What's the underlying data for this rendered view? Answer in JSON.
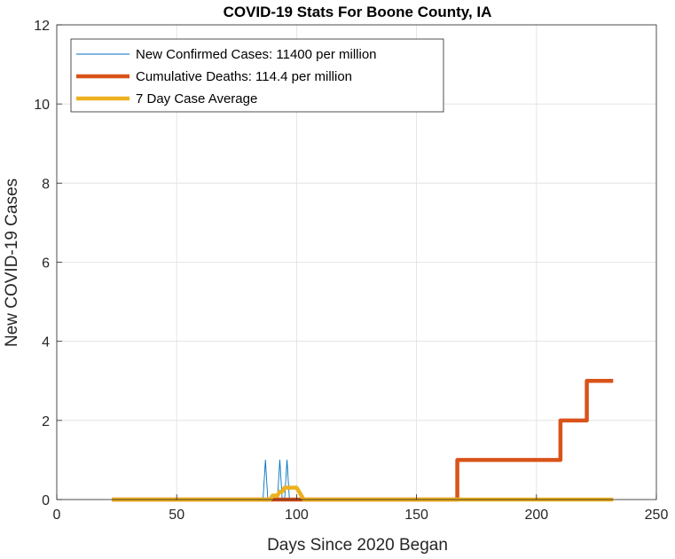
{
  "chart_data": {
    "type": "line",
    "title": "COVID-19 Stats For Boone County, IA",
    "xlabel": "Days Since 2020 Began",
    "ylabel": "New COVID-19 Cases",
    "xlim": [
      0,
      250
    ],
    "ylim": [
      0,
      12
    ],
    "xticks": [
      0,
      50,
      100,
      150,
      200,
      250
    ],
    "yticks": [
      0,
      2,
      4,
      6,
      8,
      10,
      12
    ],
    "grid": true,
    "legend_position": "top-left",
    "series": [
      {
        "name": "New Confirmed Cases: 11400 per million",
        "color": "#0072BD",
        "width": 0.9,
        "x": [
          23,
          86,
          87,
          88,
          89,
          90,
          91,
          92,
          93,
          94,
          95,
          96,
          97,
          98,
          99,
          100,
          101,
          102,
          103,
          104,
          105,
          106,
          107,
          108,
          109,
          110,
          111,
          112,
          113,
          114,
          115,
          116,
          117,
          118,
          119,
          120,
          121,
          122,
          123,
          124,
          125,
          126,
          127,
          128,
          129,
          130,
          131,
          132,
          133,
          134,
          135,
          136,
          137,
          138,
          139,
          140,
          141,
          142,
          143,
          144,
          145,
          146,
          147,
          148,
          149,
          150,
          151,
          152,
          153,
          154,
          155,
          156,
          157,
          158,
          159,
          160,
          161,
          162,
          163,
          164,
          165,
          166,
          167,
          168,
          169,
          170,
          171,
          172,
          173,
          174,
          175,
          176,
          177,
          178,
          179,
          180,
          181,
          182,
          183,
          184,
          185,
          186,
          187,
          188,
          189,
          190,
          191,
          192,
          193,
          194,
          195,
          196,
          197,
          198,
          199,
          200,
          201,
          202,
          203,
          204,
          205,
          206,
          207,
          208,
          209,
          210,
          211,
          212,
          213,
          214,
          215,
          216,
          217,
          218,
          219,
          220,
          221,
          222,
          223,
          224,
          225,
          226,
          227,
          228,
          229,
          230,
          231,
          232
        ],
        "y": [
          0,
          0,
          1,
          0,
          0,
          0,
          0,
          0,
          1,
          0,
          0,
          1,
          0,
          0,
          0,
          0,
          0,
          0,
          0,
          0,
          0,
          0,
          0,
          0,
          0,
          0,
          0,
          0,
          0,
          0,
          0,
          0,
          0,
          0,
          0,
          0,
          0,
          0,
          0,
          0,
          0,
          0,
          0,
          0,
          0,
          0,
          0,
          0,
          0,
          0,
          0,
          0,
          0,
          0,
          0,
          0,
          0,
          0,
          0,
          0,
          0,
          0,
          0,
          0,
          0,
          0,
          0,
          0,
          0,
          0,
          0,
          0,
          0,
          0,
          0,
          0,
          0,
          0,
          0,
          0,
          0,
          0,
          0,
          0,
          0,
          0,
          0,
          0,
          0,
          0,
          0,
          0,
          0,
          0,
          0,
          0,
          0,
          0,
          0,
          0,
          0,
          0,
          0,
          0,
          0,
          0,
          0,
          0,
          0,
          0,
          0,
          0,
          0,
          0,
          0,
          0,
          0,
          0,
          0,
          0,
          0,
          0,
          0,
          0,
          0,
          0,
          0,
          0,
          0,
          0,
          0,
          0,
          0,
          0,
          0,
          0,
          0,
          0,
          0,
          0,
          0,
          0,
          0,
          0,
          0,
          0,
          0,
          0
        ]
      },
      {
        "name": "Cumulative Deaths: 114.4 per million",
        "color": "#D95319",
        "width": 4.5,
        "x": [
          23,
          167,
          167,
          210,
          210,
          221,
          221,
          232
        ],
        "y": [
          0,
          0,
          1,
          1,
          2,
          2,
          3,
          3
        ]
      },
      {
        "name": "7 Day Case Average",
        "color": "#EDB120",
        "width": 4.5,
        "x": [
          23,
          86,
          88,
          89,
          90,
          91,
          92,
          93,
          94,
          95,
          96,
          97,
          98,
          99,
          100,
          101,
          102,
          103,
          104,
          105,
          106,
          107,
          108,
          109,
          110,
          111,
          112,
          113,
          114,
          115,
          116,
          117,
          118,
          119,
          120,
          121,
          122,
          123,
          124,
          125,
          126,
          127,
          128,
          129,
          130,
          131,
          132,
          133,
          134,
          135,
          136,
          137,
          138,
          139,
          140,
          141,
          142,
          143,
          144,
          145,
          146,
          147,
          148,
          149,
          150,
          151,
          152,
          153,
          154,
          155,
          156,
          157,
          158,
          159,
          160,
          161,
          162,
          163,
          164,
          165,
          166,
          167,
          168,
          169,
          170,
          171,
          172,
          173,
          174,
          175,
          176,
          177,
          178,
          179,
          180,
          181,
          182,
          183,
          184,
          185,
          186,
          187,
          188,
          189,
          190,
          191,
          192,
          193,
          194,
          195,
          196,
          197,
          198,
          199,
          200,
          201,
          202,
          203,
          204,
          205,
          206,
          207,
          208,
          209,
          210,
          211,
          212,
          213,
          214,
          215,
          216,
          217,
          218,
          219,
          220,
          221,
          222,
          223,
          224,
          225,
          226,
          227,
          228,
          229,
          230,
          231,
          232
        ],
        "y": [
          0,
          0,
          0,
          0,
          0.1,
          0.1,
          0.1,
          0.2,
          0.2,
          0.3,
          0.3,
          0.3,
          0.3,
          0.3,
          0.3,
          0.2,
          0.1,
          0,
          0,
          0,
          0,
          0,
          0,
          0,
          0,
          0,
          0,
          0,
          0,
          0,
          0,
          0,
          0,
          0,
          0,
          0,
          0,
          0,
          0,
          0,
          0,
          0,
          0,
          0,
          0,
          0,
          0,
          0,
          0,
          0,
          0,
          0,
          0,
          0,
          0,
          0,
          0,
          0,
          0,
          0,
          0,
          0,
          0,
          0,
          0,
          0,
          0,
          0,
          0,
          0,
          0,
          0,
          0,
          0,
          0,
          0,
          0,
          0,
          0,
          0,
          0,
          0,
          0,
          0,
          0,
          0,
          0,
          0,
          0,
          0,
          0,
          0,
          0,
          0,
          0,
          0,
          0,
          0,
          0,
          0,
          0,
          0,
          0,
          0,
          0,
          0,
          0,
          0,
          0,
          0,
          0,
          0,
          0,
          0,
          0,
          0,
          0,
          0,
          0,
          0,
          0,
          0,
          0,
          0,
          0,
          0,
          0,
          0,
          0,
          0,
          0,
          0,
          0,
          0,
          0,
          0,
          0,
          0,
          0,
          0,
          0,
          0,
          0,
          0,
          0,
          0,
          0
        ]
      }
    ]
  }
}
